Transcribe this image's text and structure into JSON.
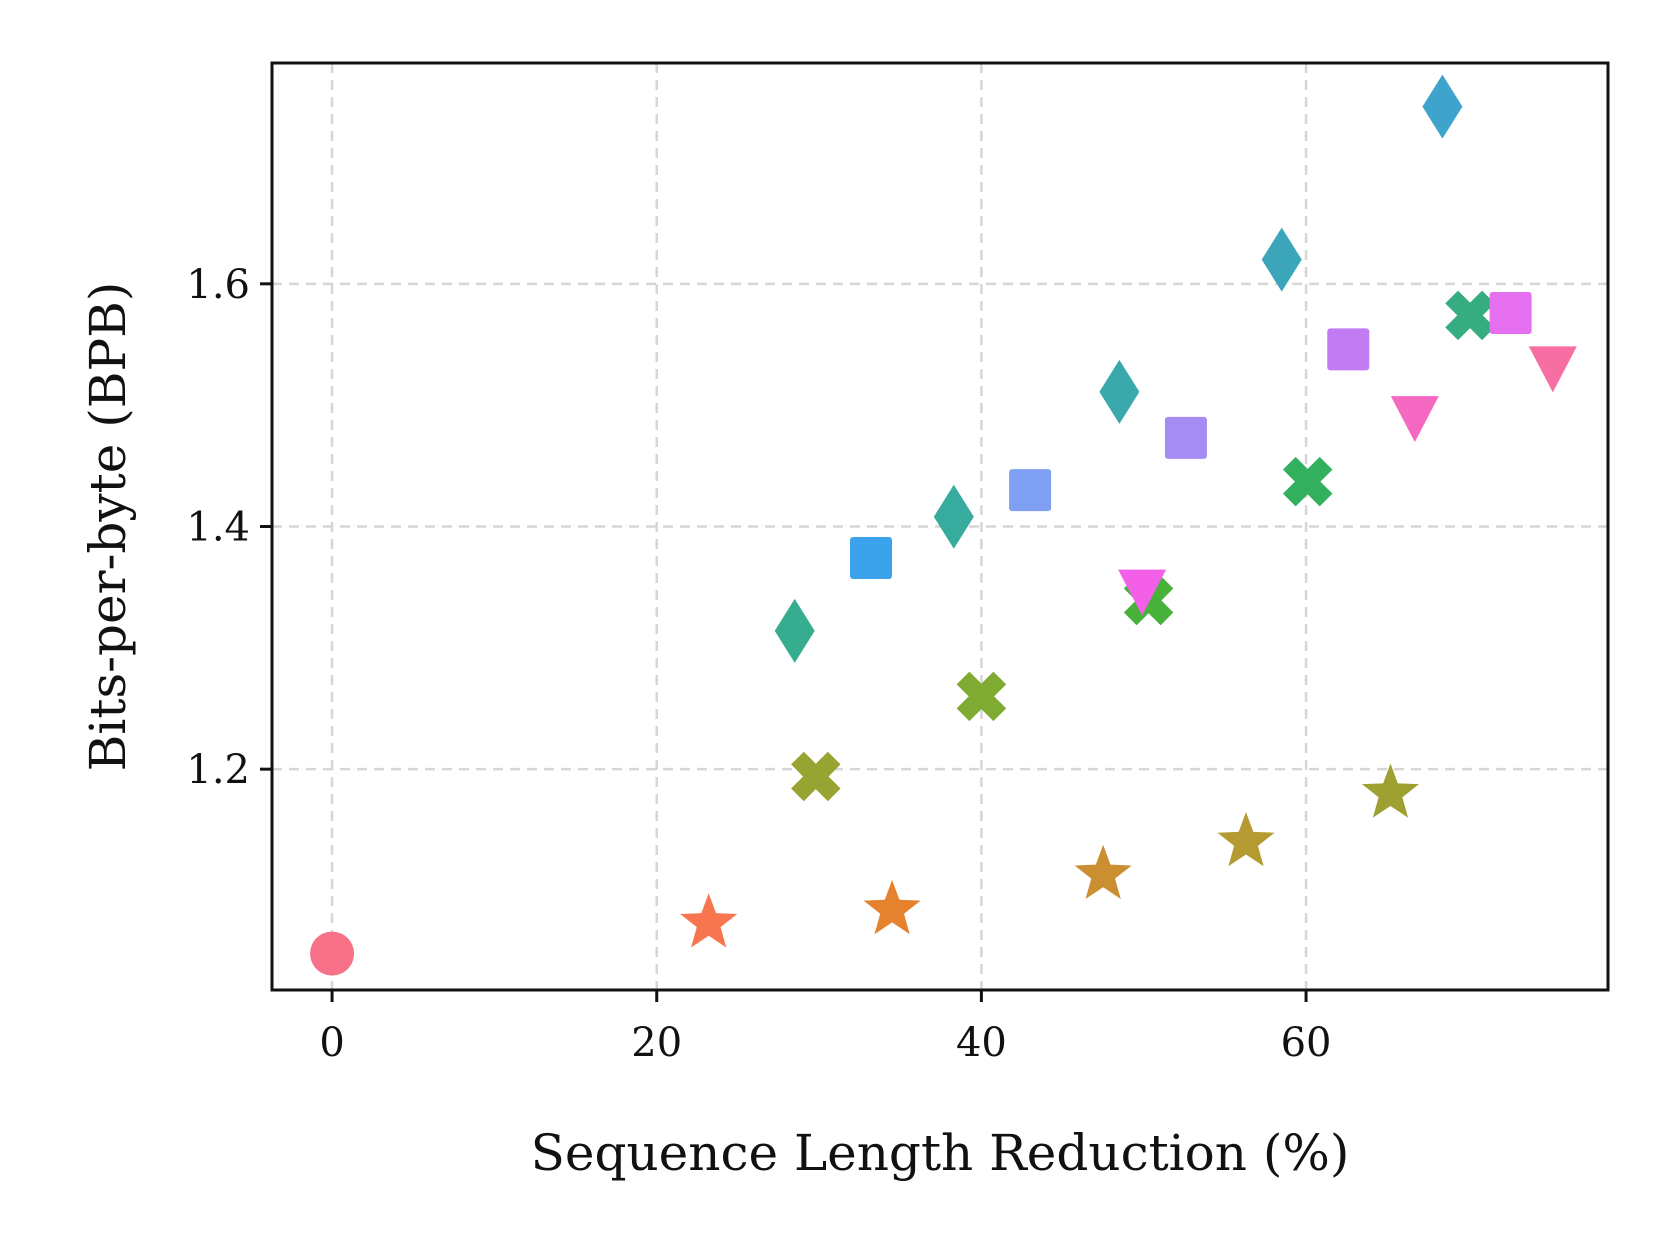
{
  "chart_data": {
    "type": "scatter",
    "title": "",
    "xlabel": "Sequence Length Reduction (%)",
    "ylabel": "Bits-per-byte (BPB)",
    "xlim": [
      -3.7,
      78.6
    ],
    "ylim": [
      1.018,
      1.782
    ],
    "xticks": [
      0,
      20,
      40,
      60
    ],
    "yticks": [
      1.2,
      1.4,
      1.6
    ],
    "grid": true,
    "legend": "none",
    "points": [
      {
        "x": 0.0,
        "y": 1.048,
        "marker": "circle",
        "color": "#f77189"
      },
      {
        "x": 23.2,
        "y": 1.073,
        "marker": "star",
        "color": "#f7754f"
      },
      {
        "x": 34.5,
        "y": 1.084,
        "marker": "star",
        "color": "#e4822d"
      },
      {
        "x": 47.5,
        "y": 1.113,
        "marker": "star",
        "color": "#cb8f32"
      },
      {
        "x": 56.3,
        "y": 1.14,
        "marker": "star",
        "color": "#b59a32"
      },
      {
        "x": 65.2,
        "y": 1.18,
        "marker": "star",
        "color": "#9ea031"
      },
      {
        "x": 29.8,
        "y": 1.194,
        "marker": "x",
        "color": "#97a431"
      },
      {
        "x": 40.0,
        "y": 1.26,
        "marker": "x",
        "color": "#7fab32"
      },
      {
        "x": 50.3,
        "y": 1.339,
        "marker": "x",
        "color": "#47b13a"
      },
      {
        "x": 60.1,
        "y": 1.437,
        "marker": "x",
        "color": "#33b05d"
      },
      {
        "x": 70.1,
        "y": 1.574,
        "marker": "x",
        "color": "#35ad80"
      },
      {
        "x": 28.5,
        "y": 1.314,
        "marker": "diamond",
        "color": "#36ad8e"
      },
      {
        "x": 38.3,
        "y": 1.408,
        "marker": "diamond",
        "color": "#37ab9e"
      },
      {
        "x": 48.5,
        "y": 1.511,
        "marker": "diamond",
        "color": "#39a9ab"
      },
      {
        "x": 58.5,
        "y": 1.62,
        "marker": "diamond",
        "color": "#3ba6ba"
      },
      {
        "x": 68.4,
        "y": 1.746,
        "marker": "diamond",
        "color": "#3fa4cd"
      },
      {
        "x": 33.2,
        "y": 1.374,
        "marker": "square",
        "color": "#3ba3ec"
      },
      {
        "x": 43.0,
        "y": 1.43,
        "marker": "square",
        "color": "#7f9ff3"
      },
      {
        "x": 52.6,
        "y": 1.473,
        "marker": "square",
        "color": "#a48cf4"
      },
      {
        "x": 62.6,
        "y": 1.546,
        "marker": "square",
        "color": "#c27cf3"
      },
      {
        "x": 72.6,
        "y": 1.576,
        "marker": "square",
        "color": "#e66ff0"
      },
      {
        "x": 49.9,
        "y": 1.348,
        "marker": "triangle_down",
        "color": "#f35fe7"
      },
      {
        "x": 66.7,
        "y": 1.491,
        "marker": "triangle_down",
        "color": "#f569c2"
      },
      {
        "x": 75.2,
        "y": 1.532,
        "marker": "triangle_down",
        "color": "#f76ea3"
      }
    ]
  }
}
